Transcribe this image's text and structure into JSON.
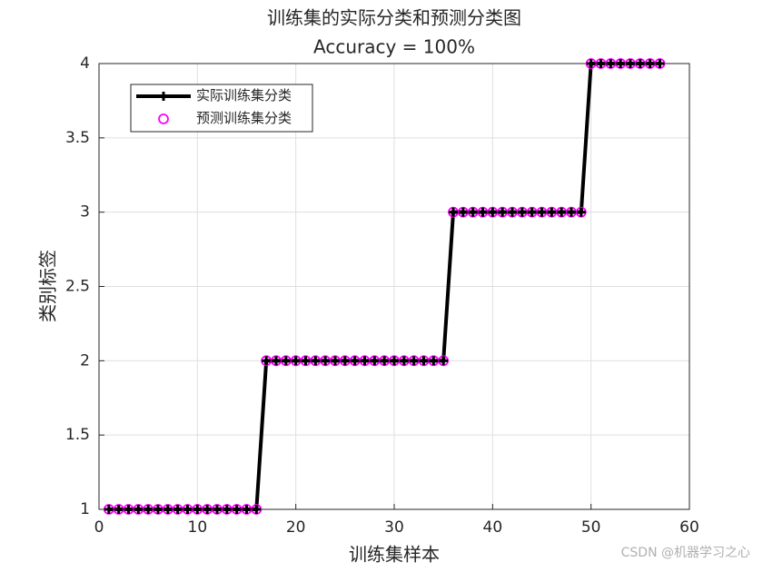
{
  "chart_data": {
    "type": "line",
    "title": "训练集的实际分类和预测分类图",
    "subtitle": "Accuracy = 100%",
    "xlabel": "训练集样本",
    "ylabel": "类别标签",
    "watermark": "CSDN @机器学习之心",
    "x": [
      1,
      2,
      3,
      4,
      5,
      6,
      7,
      8,
      9,
      10,
      11,
      12,
      13,
      14,
      15,
      16,
      17,
      18,
      19,
      20,
      21,
      22,
      23,
      24,
      25,
      26,
      27,
      28,
      29,
      30,
      31,
      32,
      33,
      34,
      35,
      36,
      37,
      38,
      39,
      40,
      41,
      42,
      43,
      44,
      45,
      46,
      47,
      48,
      49,
      50,
      51,
      52,
      53,
      54,
      55,
      56,
      57
    ],
    "series": [
      {
        "name": "实际训练集分类",
        "color": "#000000",
        "marker": "+",
        "line": true,
        "values": [
          1,
          1,
          1,
          1,
          1,
          1,
          1,
          1,
          1,
          1,
          1,
          1,
          1,
          1,
          1,
          1,
          2,
          2,
          2,
          2,
          2,
          2,
          2,
          2,
          2,
          2,
          2,
          2,
          2,
          2,
          2,
          2,
          2,
          2,
          2,
          3,
          3,
          3,
          3,
          3,
          3,
          3,
          3,
          3,
          3,
          3,
          3,
          3,
          3,
          4,
          4,
          4,
          4,
          4,
          4,
          4,
          4
        ]
      },
      {
        "name": "预测训练集分类",
        "color": "#ff00ff",
        "marker": "o",
        "line": false,
        "values": [
          1,
          1,
          1,
          1,
          1,
          1,
          1,
          1,
          1,
          1,
          1,
          1,
          1,
          1,
          1,
          1,
          2,
          2,
          2,
          2,
          2,
          2,
          2,
          2,
          2,
          2,
          2,
          2,
          2,
          2,
          2,
          2,
          2,
          2,
          2,
          3,
          3,
          3,
          3,
          3,
          3,
          3,
          3,
          3,
          3,
          3,
          3,
          3,
          3,
          4,
          4,
          4,
          4,
          4,
          4,
          4,
          4
        ]
      }
    ],
    "xlim": [
      0,
      60
    ],
    "xticks": [
      0,
      10,
      20,
      30,
      40,
      50,
      60
    ],
    "ylim": [
      1,
      4
    ],
    "yticks": [
      1,
      1.5,
      2,
      2.5,
      3,
      3.5,
      4
    ],
    "grid": true,
    "legend": "northwest"
  }
}
